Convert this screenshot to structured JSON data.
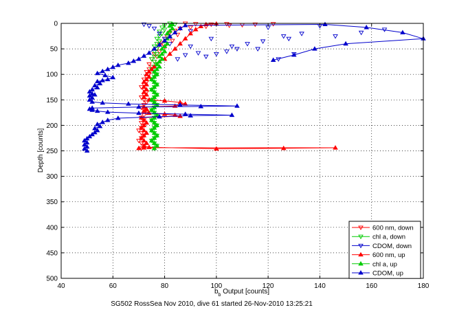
{
  "chart_data": {
    "type": "scatter",
    "title": "",
    "xlabel": "b_b Output [counts]",
    "xlabel_main": "b",
    "xlabel_sub": "b",
    "xlabel_rest": " Output [counts]",
    "ylabel": "Depth [counts]",
    "caption": "SG502 RossSea Nov 2010, dive 61 started 26-Nov-2010 13:25:21",
    "xlim": [
      40,
      180
    ],
    "ylim": [
      0,
      500
    ],
    "y_reversed": true,
    "grid": true,
    "x_ticks": [
      40,
      60,
      80,
      100,
      120,
      140,
      160,
      180
    ],
    "y_ticks": [
      0,
      50,
      100,
      150,
      200,
      250,
      300,
      350,
      400,
      450,
      500
    ],
    "legend_position": "bottom-right",
    "series": [
      {
        "name": "600 nm, down",
        "color": "#ff0000",
        "marker": "triangle-down",
        "points": [
          [
            88,
            0
          ],
          [
            92,
            1
          ],
          [
            98,
            2
          ],
          [
            104,
            1
          ],
          [
            110,
            3
          ],
          [
            115,
            2
          ],
          [
            122,
            1
          ],
          [
            105,
            4
          ],
          [
            96,
            6
          ],
          [
            90,
            8
          ],
          [
            86,
            10
          ],
          [
            84,
            14
          ],
          [
            82,
            18
          ],
          [
            85,
            22
          ],
          [
            81,
            26
          ],
          [
            80,
            30
          ],
          [
            83,
            34
          ],
          [
            79,
            38
          ],
          [
            78,
            42
          ],
          [
            80,
            46
          ],
          [
            77,
            50
          ],
          [
            78,
            55
          ],
          [
            76,
            60
          ],
          [
            77,
            65
          ],
          [
            75,
            70
          ],
          [
            76,
            75
          ],
          [
            74,
            80
          ],
          [
            75,
            85
          ],
          [
            74,
            90
          ],
          [
            73,
            95
          ],
          [
            74,
            100
          ],
          [
            73,
            105
          ],
          [
            72,
            110
          ],
          [
            73,
            115
          ],
          [
            72,
            120
          ],
          [
            71,
            125
          ],
          [
            72,
            130
          ],
          [
            73,
            135
          ],
          [
            72,
            140
          ],
          [
            71,
            145
          ],
          [
            72,
            150
          ],
          [
            73,
            155
          ],
          [
            72,
            160
          ],
          [
            71,
            165
          ],
          [
            72,
            170
          ],
          [
            73,
            175
          ],
          [
            72,
            180
          ],
          [
            71,
            185
          ],
          [
            72,
            190
          ],
          [
            71,
            195
          ],
          [
            72,
            200
          ],
          [
            71,
            205
          ],
          [
            70,
            210
          ],
          [
            71,
            215
          ],
          [
            72,
            220
          ],
          [
            71,
            225
          ],
          [
            70,
            230
          ],
          [
            71,
            235
          ],
          [
            72,
            240
          ],
          [
            71,
            245
          ]
        ]
      },
      {
        "name": "chl a, down",
        "color": "#00cc00",
        "marker": "triangle-down",
        "points": [
          [
            82,
            0
          ],
          [
            84,
            2
          ],
          [
            80,
            4
          ],
          [
            79,
            8
          ],
          [
            80,
            12
          ],
          [
            78,
            16
          ],
          [
            79,
            20
          ],
          [
            78,
            25
          ],
          [
            77,
            30
          ],
          [
            78,
            35
          ],
          [
            77,
            40
          ],
          [
            76,
            45
          ],
          [
            77,
            50
          ],
          [
            76,
            55
          ],
          [
            77,
            60
          ],
          [
            76,
            65
          ],
          [
            75,
            70
          ],
          [
            76,
            75
          ],
          [
            77,
            80
          ],
          [
            76,
            85
          ],
          [
            75,
            90
          ],
          [
            76,
            95
          ],
          [
            77,
            100
          ],
          [
            76,
            105
          ],
          [
            75,
            110
          ],
          [
            76,
            115
          ],
          [
            77,
            120
          ],
          [
            76,
            125
          ],
          [
            75,
            130
          ],
          [
            76,
            135
          ],
          [
            77,
            140
          ],
          [
            76,
            145
          ],
          [
            75,
            150
          ],
          [
            76,
            155
          ],
          [
            77,
            160
          ],
          [
            76,
            165
          ],
          [
            75,
            170
          ],
          [
            76,
            175
          ],
          [
            77,
            180
          ],
          [
            76,
            185
          ],
          [
            75,
            190
          ],
          [
            76,
            195
          ],
          [
            77,
            200
          ],
          [
            76,
            205
          ],
          [
            75,
            210
          ],
          [
            76,
            215
          ],
          [
            77,
            220
          ],
          [
            76,
            225
          ],
          [
            75,
            230
          ],
          [
            76,
            235
          ],
          [
            77,
            240
          ],
          [
            76,
            245
          ]
        ]
      },
      {
        "name": "CDOM, down",
        "color": "#0000cc",
        "marker": "triangle-down",
        "points": [
          [
            165,
            12
          ],
          [
            156,
            18
          ],
          [
            140,
            5
          ],
          [
            133,
            20
          ],
          [
            126,
            25
          ],
          [
            120,
            8
          ],
          [
            118,
            35
          ],
          [
            112,
            40
          ],
          [
            108,
            50
          ],
          [
            104,
            55
          ],
          [
            100,
            60
          ],
          [
            96,
            65
          ],
          [
            93,
            58
          ],
          [
            90,
            45
          ],
          [
            88,
            62
          ],
          [
            85,
            70
          ],
          [
            82,
            40
          ],
          [
            80,
            30
          ],
          [
            78,
            20
          ],
          [
            76,
            10
          ],
          [
            74,
            5
          ],
          [
            72,
            2
          ],
          [
            90,
            15
          ],
          [
            98,
            30
          ],
          [
            106,
            45
          ],
          [
            116,
            50
          ],
          [
            128,
            30
          ],
          [
            146,
            25
          ],
          [
            130,
            60
          ],
          [
            124,
            70
          ]
        ]
      },
      {
        "name": "600 nm, up",
        "color": "#ff0000",
        "marker": "triangle-up",
        "points": [
          [
            70,
            245
          ],
          [
            72,
            244
          ],
          [
            146,
            244
          ],
          [
            126,
            245
          ],
          [
            100,
            246
          ],
          [
            74,
            243
          ],
          [
            72,
            240
          ],
          [
            73,
            235
          ],
          [
            72,
            230
          ],
          [
            71,
            225
          ],
          [
            72,
            220
          ],
          [
            73,
            215
          ],
          [
            72,
            210
          ],
          [
            71,
            205
          ],
          [
            72,
            200
          ],
          [
            73,
            195
          ],
          [
            72,
            190
          ],
          [
            71,
            185
          ],
          [
            86,
            182
          ],
          [
            84,
            180
          ],
          [
            80,
            178
          ],
          [
            74,
            176
          ],
          [
            72,
            172
          ],
          [
            73,
            168
          ],
          [
            72,
            164
          ],
          [
            84,
            162
          ],
          [
            88,
            158
          ],
          [
            86,
            155
          ],
          [
            80,
            152
          ],
          [
            74,
            150
          ],
          [
            72,
            145
          ],
          [
            73,
            140
          ],
          [
            72,
            135
          ],
          [
            73,
            130
          ],
          [
            72,
            125
          ],
          [
            73,
            120
          ],
          [
            72,
            115
          ],
          [
            73,
            110
          ],
          [
            74,
            105
          ],
          [
            73,
            100
          ],
          [
            74,
            95
          ],
          [
            75,
            90
          ],
          [
            76,
            85
          ],
          [
            77,
            80
          ],
          [
            78,
            75
          ],
          [
            80,
            70
          ],
          [
            82,
            60
          ],
          [
            84,
            50
          ],
          [
            86,
            40
          ],
          [
            88,
            30
          ],
          [
            90,
            20
          ],
          [
            92,
            12
          ],
          [
            94,
            6
          ],
          [
            96,
            2
          ],
          [
            100,
            1
          ]
        ]
      },
      {
        "name": "chl a, up",
        "color": "#00cc00",
        "marker": "triangle-up",
        "points": [
          [
            76,
            245
          ],
          [
            77,
            240
          ],
          [
            76,
            235
          ],
          [
            75,
            230
          ],
          [
            76,
            225
          ],
          [
            77,
            220
          ],
          [
            76,
            215
          ],
          [
            75,
            210
          ],
          [
            76,
            205
          ],
          [
            77,
            200
          ],
          [
            76,
            195
          ],
          [
            75,
            190
          ],
          [
            76,
            185
          ],
          [
            77,
            180
          ],
          [
            76,
            175
          ],
          [
            75,
            170
          ],
          [
            76,
            165
          ],
          [
            77,
            160
          ],
          [
            76,
            155
          ],
          [
            75,
            150
          ],
          [
            76,
            145
          ],
          [
            77,
            140
          ],
          [
            76,
            135
          ],
          [
            75,
            130
          ],
          [
            76,
            125
          ],
          [
            77,
            120
          ],
          [
            76,
            115
          ],
          [
            75,
            110
          ],
          [
            76,
            105
          ],
          [
            77,
            100
          ],
          [
            76,
            95
          ],
          [
            77,
            90
          ],
          [
            78,
            85
          ],
          [
            77,
            80
          ],
          [
            78,
            75
          ],
          [
            79,
            70
          ],
          [
            78,
            65
          ],
          [
            79,
            60
          ],
          [
            80,
            55
          ],
          [
            79,
            50
          ],
          [
            80,
            45
          ],
          [
            81,
            40
          ],
          [
            80,
            35
          ],
          [
            81,
            30
          ],
          [
            82,
            25
          ],
          [
            81,
            20
          ],
          [
            82,
            15
          ],
          [
            83,
            10
          ],
          [
            82,
            5
          ],
          [
            83,
            2
          ]
        ]
      },
      {
        "name": "CDOM, up",
        "color": "#0000cc",
        "marker": "triangle-up",
        "points": [
          [
            50,
            250
          ],
          [
            49,
            246
          ],
          [
            50,
            242
          ],
          [
            49,
            238
          ],
          [
            50,
            234
          ],
          [
            49,
            230
          ],
          [
            50,
            226
          ],
          [
            51,
            222
          ],
          [
            52,
            218
          ],
          [
            53,
            214
          ],
          [
            54,
            210
          ],
          [
            53,
            206
          ],
          [
            55,
            202
          ],
          [
            54,
            198
          ],
          [
            56,
            194
          ],
          [
            58,
            190
          ],
          [
            62,
            186
          ],
          [
            78,
            183
          ],
          [
            90,
            181
          ],
          [
            106,
            180
          ],
          [
            88,
            178
          ],
          [
            70,
            176
          ],
          [
            58,
            174
          ],
          [
            54,
            172
          ],
          [
            52,
            170
          ],
          [
            51,
            168
          ],
          [
            52,
            166
          ],
          [
            70,
            164
          ],
          [
            94,
            163
          ],
          [
            108,
            162
          ],
          [
            86,
            160
          ],
          [
            66,
            158
          ],
          [
            56,
            156
          ],
          [
            52,
            154
          ],
          [
            51,
            150
          ],
          [
            52,
            146
          ],
          [
            51,
            142
          ],
          [
            53,
            140
          ],
          [
            52,
            138
          ],
          [
            51,
            134
          ],
          [
            52,
            130
          ],
          [
            54,
            126
          ],
          [
            53,
            122
          ],
          [
            55,
            118
          ],
          [
            54,
            114
          ],
          [
            56,
            112
          ],
          [
            58,
            110
          ],
          [
            60,
            106
          ],
          [
            57,
            102
          ],
          [
            54,
            98
          ],
          [
            56,
            94
          ],
          [
            58,
            90
          ],
          [
            60,
            86
          ],
          [
            62,
            82
          ],
          [
            66,
            78
          ],
          [
            68,
            74
          ],
          [
            70,
            70
          ],
          [
            72,
            64
          ],
          [
            74,
            58
          ],
          [
            76,
            50
          ],
          [
            78,
            42
          ],
          [
            80,
            34
          ],
          [
            82,
            26
          ],
          [
            84,
            18
          ],
          [
            86,
            10
          ],
          [
            88,
            4
          ],
          [
            142,
            2
          ],
          [
            158,
            8
          ],
          [
            172,
            18
          ],
          [
            180,
            30
          ],
          [
            150,
            40
          ],
          [
            138,
            50
          ],
          [
            130,
            62
          ],
          [
            122,
            72
          ]
        ]
      }
    ]
  }
}
